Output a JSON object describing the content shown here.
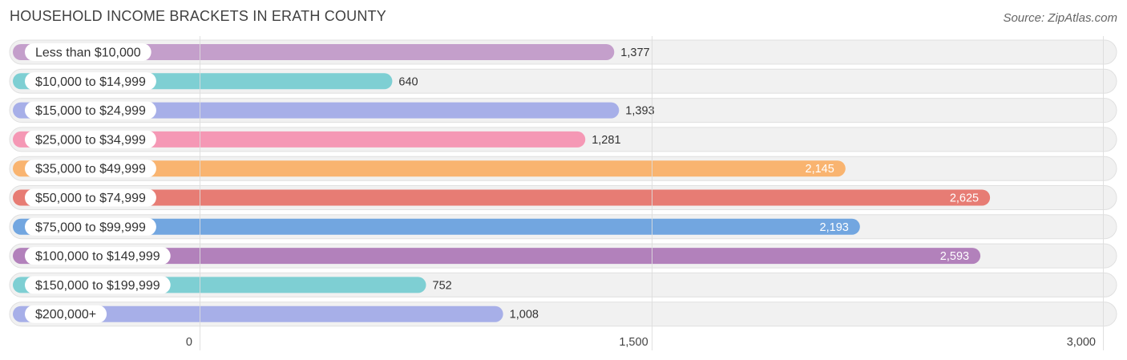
{
  "title": "HOUSEHOLD INCOME BRACKETS IN ERATH COUNTY",
  "source": "Source: ZipAtlas.com",
  "chart_data": {
    "type": "bar",
    "orientation": "horizontal",
    "categories": [
      "Less than $10,000",
      "$10,000 to $14,999",
      "$15,000 to $24,999",
      "$25,000 to $34,999",
      "$35,000 to $49,999",
      "$50,000 to $74,999",
      "$75,000 to $99,999",
      "$100,000 to $149,999",
      "$150,000 to $199,999",
      "$200,000+"
    ],
    "values": [
      1377,
      640,
      1393,
      1281,
      2145,
      2625,
      2193,
      2593,
      752,
      1008
    ],
    "value_labels": [
      "1,377",
      "640",
      "1,393",
      "1,281",
      "2,145",
      "2,625",
      "2,193",
      "2,593",
      "752",
      "1,008"
    ],
    "colors": [
      "#c49fcb",
      "#7ecfd3",
      "#a7afe8",
      "#f598b5",
      "#f9b470",
      "#e77c74",
      "#72a6e0",
      "#b281bb",
      "#7ecfd3",
      "#a7afe8"
    ],
    "xlim": [
      0,
      3000
    ],
    "ticks": [
      0,
      1500,
      3000
    ],
    "tick_labels": [
      "0",
      "1,500",
      "3,000"
    ],
    "grid": true
  }
}
